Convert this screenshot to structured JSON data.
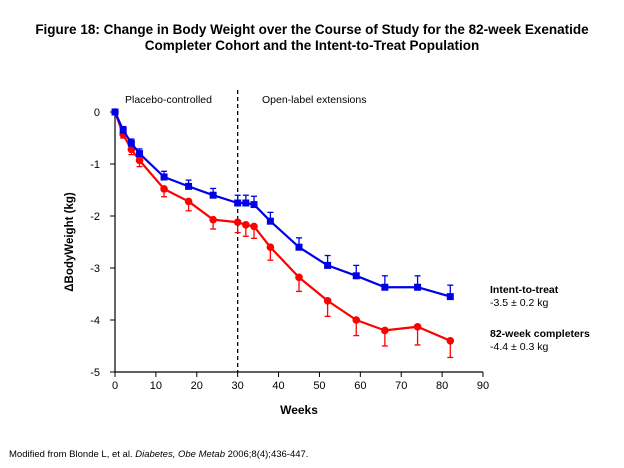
{
  "title_lines": [
    "Figure 18: Change in Body Weight over the Course of Study for the 82-week Exenatide",
    "Completer Cohort and the Intent-to-Treat Population"
  ],
  "footnote": {
    "prefix": "Modified from Blonde L, et al. ",
    "journal": "Diabetes, Obe Metab",
    "suffix": " 2006;8(4);436-447."
  },
  "colors": {
    "itt": "#0000e6",
    "completers": "#ff0000",
    "axis": "#000000"
  },
  "chart_data": {
    "type": "line",
    "xlabel": "Weeks",
    "ylabel": "ΔBodyWeight (kg)",
    "xlim": [
      0,
      90
    ],
    "ylim": [
      -5,
      0
    ],
    "xticks": [
      0,
      10,
      20,
      30,
      40,
      50,
      60,
      70,
      80,
      90
    ],
    "yticks": [
      0,
      -1,
      -2,
      -3,
      -4,
      -5
    ],
    "grid": false,
    "divider": {
      "x": 30,
      "style": "dashed"
    },
    "phase_labels": [
      "Placebo-controlled",
      "Open-label extensions"
    ],
    "series": [
      {
        "name": "Intent-to-treat",
        "summary": "-3.5 ± 0.2 kg",
        "marker": "square",
        "x": [
          0,
          2,
          4,
          6,
          12,
          18,
          24,
          30,
          32,
          34,
          38,
          45,
          52,
          59,
          66,
          74,
          82
        ],
        "y": [
          0,
          -0.35,
          -0.6,
          -0.8,
          -1.25,
          -1.43,
          -1.6,
          -1.75,
          -1.75,
          -1.78,
          -2.1,
          -2.6,
          -2.95,
          -3.15,
          -3.37,
          -3.37,
          -3.55
        ],
        "err": [
          0,
          0.07,
          0.08,
          0.09,
          0.11,
          0.12,
          0.13,
          0.15,
          0.15,
          0.16,
          0.17,
          0.18,
          0.19,
          0.2,
          0.22,
          0.22,
          0.22
        ]
      },
      {
        "name": "82-week completers",
        "summary": "-4.4 ± 0.3 kg",
        "marker": "circle",
        "x": [
          0,
          2,
          4,
          6,
          12,
          18,
          24,
          30,
          32,
          34,
          38,
          45,
          52,
          59,
          66,
          74,
          82
        ],
        "y": [
          0,
          -0.43,
          -0.72,
          -0.93,
          -1.48,
          -1.72,
          -2.07,
          -2.12,
          -2.17,
          -2.2,
          -2.6,
          -3.18,
          -3.63,
          -4.0,
          -4.2,
          -4.13,
          -4.4
        ],
        "err": [
          0,
          0.07,
          0.1,
          0.12,
          0.15,
          0.18,
          0.18,
          0.2,
          0.22,
          0.23,
          0.25,
          0.27,
          0.3,
          0.3,
          0.3,
          0.35,
          0.32
        ]
      }
    ]
  }
}
